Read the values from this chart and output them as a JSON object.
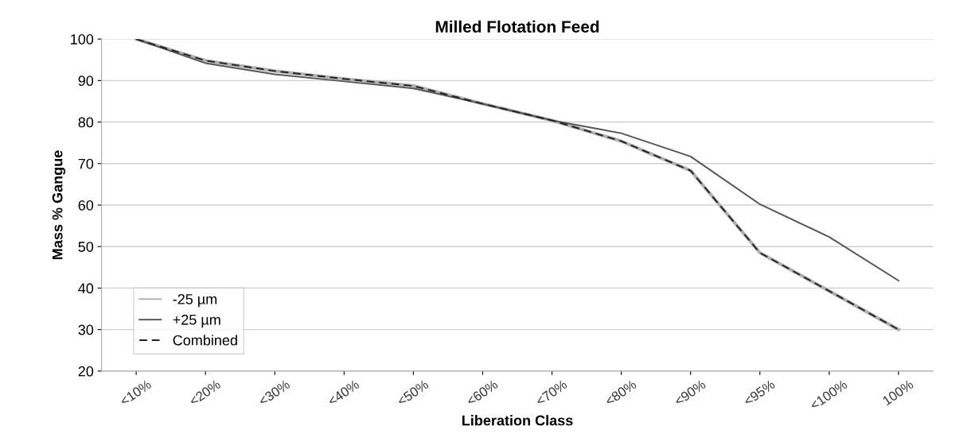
{
  "chart_data": {
    "type": "line",
    "title": "Milled Flotation Feed",
    "xlabel": "Liberation Class",
    "ylabel": "Mass % Gangue",
    "categories": [
      "<10%",
      "<20%",
      "<30%",
      "<40%",
      "<50%",
      "<60%",
      "<70%",
      "<80%",
      "<90%",
      "<95%",
      "<100%",
      "100%"
    ],
    "series": [
      {
        "name": "-25 µm",
        "color": "#b0b0b0",
        "line_style": "solid",
        "values": [
          100,
          94.8,
          92.3,
          90.4,
          88.7,
          84.4,
          80.4,
          75.4,
          68.3,
          48.5,
          39.3,
          30
        ]
      },
      {
        "name": "+25 µm",
        "color": "#555555",
        "line_style": "solid",
        "values": [
          100,
          94.2,
          91.5,
          89.8,
          88.1,
          84.4,
          80.4,
          77.3,
          71.7,
          60.2,
          52.3,
          41.8
        ]
      },
      {
        "name": "Combined",
        "color": "#222222",
        "line_style": "dashed",
        "values": [
          100,
          94.8,
          92.3,
          90.4,
          88.7,
          84.4,
          80.4,
          75.4,
          68.3,
          48.5,
          39.3,
          30
        ]
      }
    ],
    "ylim": [
      20,
      100
    ],
    "yticks": [
      20,
      30,
      40,
      50,
      60,
      70,
      80,
      90,
      100
    ],
    "grid": "y",
    "legend": "bottom left",
    "marker": "none"
  }
}
